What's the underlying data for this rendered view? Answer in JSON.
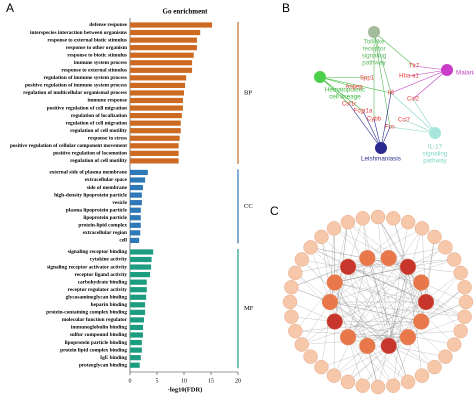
{
  "panel_labels": [
    "A",
    "B",
    "C"
  ],
  "chart_data": {
    "type": "barh",
    "title": "Go enrichment",
    "xlabel": "-log10(FDR)",
    "xlim": [
      0,
      20
    ],
    "xticks": [
      0,
      5,
      10,
      15,
      20
    ],
    "series": [
      {
        "name": "BP",
        "color": "#cc6a22",
        "categories": [
          "defense response",
          "interspecies interaction between organisms",
          "response to external biotic stimulus",
          "response to other organism",
          "response to biotic stimulus",
          "immune system process",
          "response to external stimulus",
          "regulation of immune system process",
          "positive regulation of immune system process",
          "regulation of multicellular organismal process",
          "immune response",
          "positive regulation of cell migration",
          "regulation of localization",
          "regulation of cell migration",
          "regulation of cell motility",
          "response to stress",
          "positive regulation of cellular component movement",
          "positive regulation of locomotion",
          "regulation of cell motility"
        ],
        "values": [
          15.2,
          13,
          12.4,
          12.4,
          11.8,
          11.5,
          11.5,
          10.4,
          10.2,
          10,
          9.8,
          9.8,
          9.6,
          9.4,
          9.4,
          9.2,
          9,
          9,
          9
        ]
      },
      {
        "name": "CC",
        "color": "#2e78b8",
        "categories": [
          "external side of plasma membrane",
          "extracellular space",
          "side of membrane",
          "high-density lipoprotein particle",
          "vesicle",
          "plasma lipoprotein particle",
          "lipoprotein particle",
          "protein-lipid complex",
          "extracellular region",
          "cell"
        ],
        "values": [
          3.3,
          2.8,
          2.4,
          2.2,
          2.2,
          2,
          2,
          2,
          1.9,
          1.7
        ]
      },
      {
        "name": "MF",
        "color": "#1c9c80",
        "categories": [
          "signaling receptor binding",
          "cytokine activity",
          "signaling receptor activator activity",
          "receptor ligand activity",
          "carbohydrate binding",
          "receptor regulator activity",
          "glycosaminoglycan binding",
          "heparin binding",
          "protein-containing complex binding",
          "molecular function regulator",
          "immunoglobulin binding",
          "sulfur compound binding",
          "lipoprotein particle binding",
          "protein lipid complex binding",
          "IgE binding",
          "proteoglycan binding"
        ],
        "values": [
          4.3,
          4,
          3.9,
          3.7,
          3.1,
          3.1,
          3,
          2.8,
          2.8,
          2.6,
          2.4,
          2.4,
          2.2,
          2.2,
          2,
          1.8
        ]
      }
    ]
  },
  "network_b": {
    "pathways": [
      {
        "label_lines": [
          "Toll-like",
          "receptor",
          "signaling",
          "pathway"
        ],
        "color": "#5cb85c",
        "node_color": "#a3bb9c"
      },
      {
        "label_lines": [
          "Hematopoietic",
          "cell lineage"
        ],
        "color": "#3cb83c",
        "node_color": "#4cd04c"
      },
      {
        "label_lines": [
          "Malaria"
        ],
        "color": "#c03cc0",
        "node_color": "#c83cc8"
      },
      {
        "label_lines": [
          "Leishmaniasis"
        ],
        "color": "#2b2b8f",
        "node_color": "#2b2b8f"
      },
      {
        "label_lines": [
          "IL-17",
          "signaling",
          "pathway"
        ],
        "color": "#7fd4c4",
        "node_color": "#a6e6dc"
      }
    ],
    "genes": [
      "Tlr7",
      "Hba-a1",
      "Spp1",
      "Anpep",
      "Il6",
      "Csf1r",
      "Fcgr1a",
      "Ccl2",
      "Cybb",
      "Ccl7",
      "Fos"
    ],
    "gene_color": "#e83b3b"
  }
}
